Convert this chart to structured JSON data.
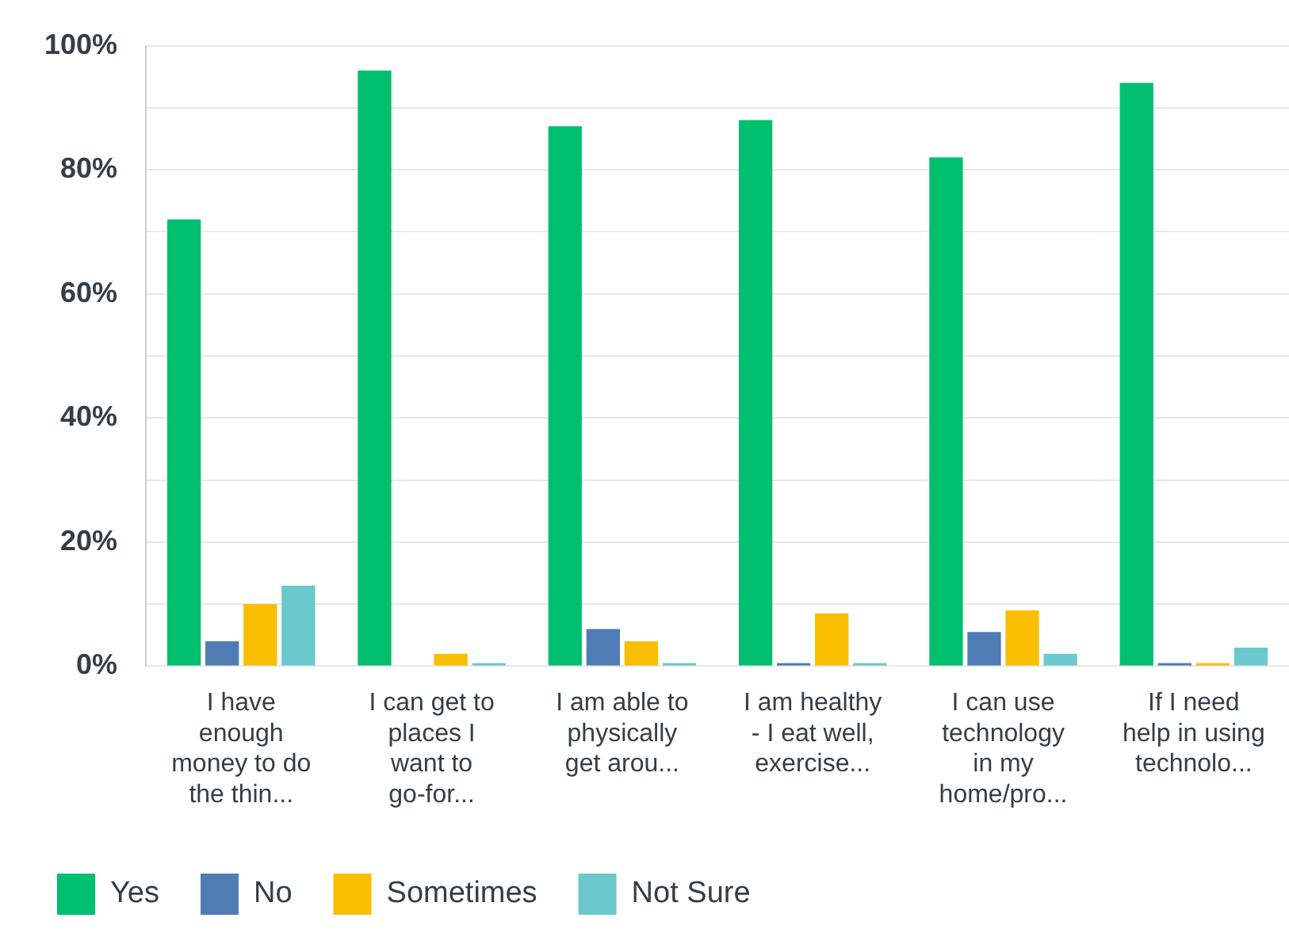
{
  "chart_data": {
    "type": "bar",
    "categories": [
      "I have enough money to do the thin...",
      "I can get to places I want to go-for...",
      "I am able to physically get arou...",
      "I am healthy - I eat well, exercise...",
      "I can use technology in my home/pro...",
      "If I need help in using technolo..."
    ],
    "series": [
      {
        "name": "Yes",
        "color": "#00bf6f",
        "values": [
          72,
          96,
          87,
          88,
          82,
          94
        ]
      },
      {
        "name": "No",
        "color": "#507cb6",
        "values": [
          4,
          0,
          6,
          0.5,
          5.5,
          0.5
        ]
      },
      {
        "name": "Sometimes",
        "color": "#f9be00",
        "values": [
          10,
          2,
          4,
          8.5,
          9,
          0.5
        ]
      },
      {
        "name": "Not Sure",
        "color": "#6bc8cd",
        "values": [
          13,
          0.5,
          0.5,
          0.5,
          2,
          3
        ]
      }
    ],
    "ylim": [
      0,
      100
    ],
    "yticks": [
      {
        "value": 0,
        "label": "0%"
      },
      {
        "value": 10,
        "label": null
      },
      {
        "value": 20,
        "label": "20%"
      },
      {
        "value": 30,
        "label": null
      },
      {
        "value": 40,
        "label": "40%"
      },
      {
        "value": 50,
        "label": null
      },
      {
        "value": 60,
        "label": "60%"
      },
      {
        "value": 70,
        "label": null
      },
      {
        "value": 80,
        "label": "80%"
      },
      {
        "value": 90,
        "label": null
      },
      {
        "value": 100,
        "label": "100%"
      }
    ],
    "grid": "y",
    "legend": "bottom left"
  }
}
